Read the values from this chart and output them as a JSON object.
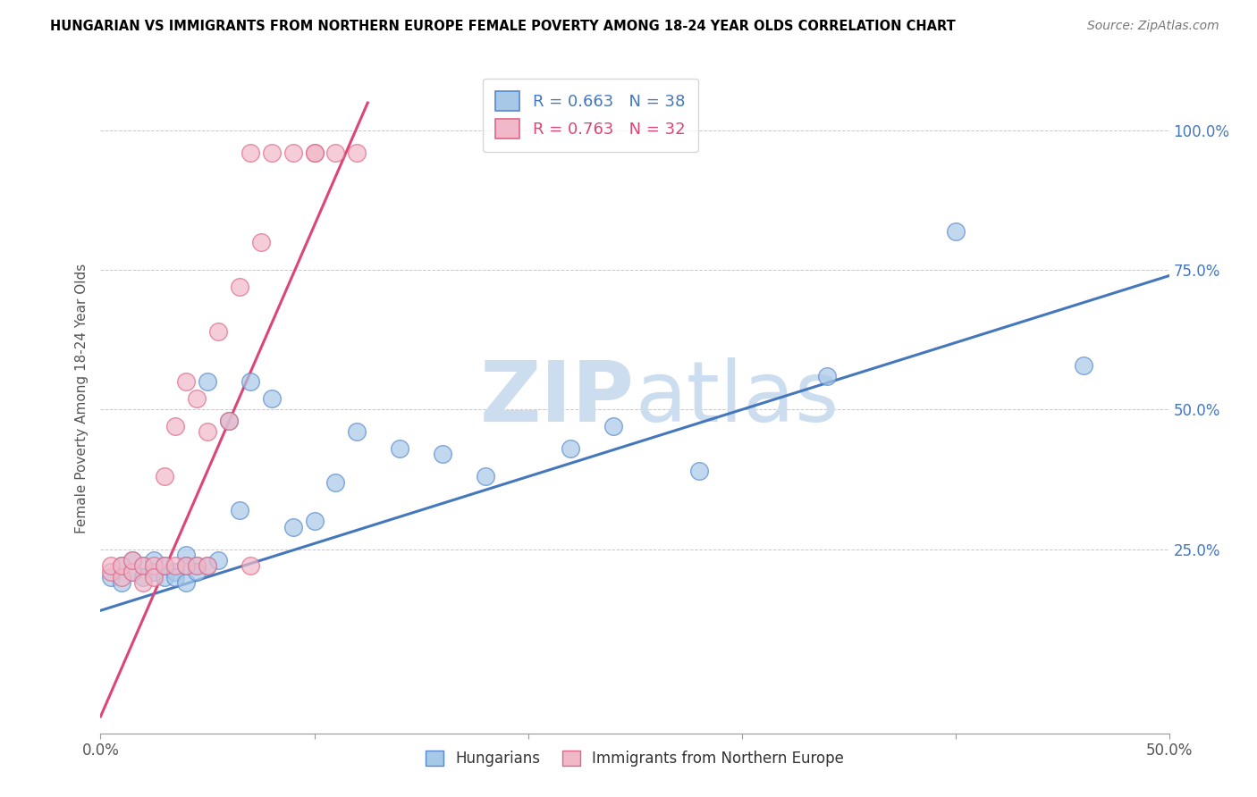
{
  "title": "HUNGARIAN VS IMMIGRANTS FROM NORTHERN EUROPE FEMALE POVERTY AMONG 18-24 YEAR OLDS CORRELATION CHART",
  "source": "Source: ZipAtlas.com",
  "ylabel": "Female Poverty Among 18-24 Year Olds",
  "xlim": [
    0.0,
    0.5
  ],
  "ylim": [
    -0.08,
    1.12
  ],
  "xtick_positions": [
    0.0,
    0.1,
    0.2,
    0.3,
    0.4,
    0.5
  ],
  "xticklabels": [
    "0.0%",
    "",
    "",
    "",
    "",
    "50.0%"
  ],
  "ytick_positions": [
    0.25,
    0.5,
    0.75,
    1.0
  ],
  "ytick_labels": [
    "25.0%",
    "50.0%",
    "75.0%",
    "100.0%"
  ],
  "blue_R": 0.663,
  "blue_N": 38,
  "pink_R": 0.763,
  "pink_N": 32,
  "blue_color": "#a8c8e8",
  "pink_color": "#f0b8c8",
  "blue_edge_color": "#5588cc",
  "pink_edge_color": "#dd6688",
  "blue_line_color": "#4477bb",
  "pink_line_color": "#dd4477",
  "watermark_color": "#ccddf0",
  "blue_scatter_x": [
    0.005,
    0.01,
    0.01,
    0.015,
    0.015,
    0.02,
    0.02,
    0.025,
    0.025,
    0.03,
    0.03,
    0.035,
    0.035,
    0.04,
    0.04,
    0.04,
    0.045,
    0.045,
    0.05,
    0.05,
    0.055,
    0.06,
    0.065,
    0.07,
    0.08,
    0.09,
    0.1,
    0.11,
    0.12,
    0.14,
    0.16,
    0.18,
    0.22,
    0.24,
    0.28,
    0.34,
    0.4,
    0.46
  ],
  "blue_scatter_y": [
    0.2,
    0.22,
    0.19,
    0.21,
    0.23,
    0.22,
    0.2,
    0.21,
    0.23,
    0.2,
    0.22,
    0.21,
    0.2,
    0.24,
    0.22,
    0.19,
    0.22,
    0.21,
    0.55,
    0.22,
    0.23,
    0.48,
    0.32,
    0.55,
    0.52,
    0.29,
    0.3,
    0.37,
    0.46,
    0.43,
    0.42,
    0.38,
    0.43,
    0.47,
    0.39,
    0.56,
    0.82,
    0.58
  ],
  "pink_scatter_x": [
    0.005,
    0.005,
    0.01,
    0.01,
    0.015,
    0.015,
    0.02,
    0.02,
    0.025,
    0.025,
    0.03,
    0.03,
    0.035,
    0.035,
    0.04,
    0.04,
    0.045,
    0.045,
    0.05,
    0.05,
    0.055,
    0.06,
    0.065,
    0.07,
    0.07,
    0.075,
    0.08,
    0.09,
    0.1,
    0.1,
    0.11,
    0.12
  ],
  "pink_scatter_y": [
    0.21,
    0.22,
    0.2,
    0.22,
    0.21,
    0.23,
    0.22,
    0.19,
    0.22,
    0.2,
    0.38,
    0.22,
    0.47,
    0.22,
    0.55,
    0.22,
    0.52,
    0.22,
    0.46,
    0.22,
    0.64,
    0.48,
    0.72,
    0.96,
    0.22,
    0.8,
    0.96,
    0.96,
    0.96,
    0.96,
    0.96,
    0.96
  ],
  "blue_line_x": [
    0.0,
    0.5
  ],
  "blue_line_y": [
    0.14,
    0.74
  ],
  "pink_line_x": [
    0.0,
    0.125
  ],
  "pink_line_y": [
    -0.05,
    1.05
  ]
}
